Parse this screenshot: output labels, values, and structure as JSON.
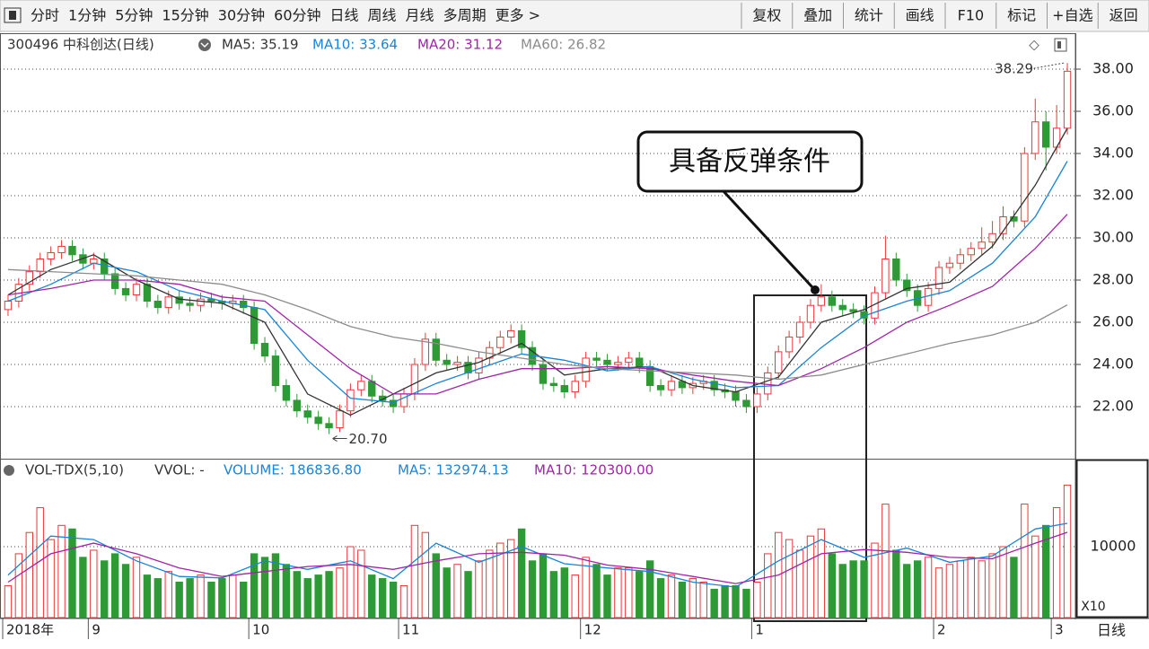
{
  "toolbar": {
    "left": [
      "分时",
      "1分钟",
      "5分钟",
      "15分钟",
      "30分钟",
      "60分钟",
      "日线",
      "周线",
      "月线",
      "多周期",
      "更多 >"
    ],
    "active_index": 6,
    "right": [
      "复权",
      "叠加",
      "统计",
      "画线",
      "F10",
      "标记",
      "+自选",
      "返回"
    ]
  },
  "chart_data": {
    "type": "candlestick",
    "title": "300496 中科创达(日线)",
    "open": [
      26.6,
      27.0,
      27.8,
      28.4,
      29.0,
      29.3,
      29.6,
      29.2,
      28.8,
      29.0,
      28.3,
      27.6,
      27.3,
      27.8,
      27.0,
      26.7,
      27.2,
      26.9,
      26.8,
      27.1,
      27.0,
      26.9,
      27.0,
      26.7,
      25.0,
      24.4,
      23.0,
      22.3,
      21.8,
      21.5,
      21.2,
      21.0,
      21.8,
      22.8,
      23.2,
      22.5,
      22.3,
      22.0,
      22.6,
      24.0,
      25.2,
      24.2,
      24.0,
      24.1,
      23.6,
      24.3,
      24.8,
      25.3,
      25.6,
      24.8,
      24.0,
      23.1,
      23.0,
      22.7,
      23.2,
      24.3,
      24.2,
      24.0,
      24.1,
      24.3,
      23.9,
      23.0,
      22.8,
      23.2,
      22.9,
      23.1,
      23.2,
      22.8,
      22.7,
      22.3,
      22.0,
      22.6,
      23.6,
      24.6,
      25.3,
      26.0,
      26.8,
      27.2,
      26.8,
      26.6,
      26.5,
      26.2,
      27.4,
      29.0,
      28.0,
      27.5,
      26.8,
      27.6,
      28.6,
      28.8,
      29.2,
      29.5,
      29.8,
      30.2,
      31.0,
      30.8,
      34.0,
      35.5,
      34.3,
      35.2
    ],
    "high": [
      27.3,
      28.1,
      28.7,
      29.3,
      29.6,
      29.9,
      29.9,
      29.5,
      29.3,
      29.3,
      28.6,
      27.9,
      28.1,
      28.1,
      27.3,
      27.5,
      27.5,
      27.2,
      27.4,
      27.4,
      27.3,
      27.3,
      27.3,
      27.0,
      25.3,
      24.7,
      23.3,
      22.6,
      22.1,
      21.8,
      21.5,
      22.1,
      23.1,
      23.5,
      23.5,
      22.8,
      22.6,
      22.9,
      24.3,
      25.5,
      25.5,
      24.5,
      24.4,
      24.4,
      24.6,
      25.1,
      25.6,
      25.9,
      25.9,
      25.1,
      24.3,
      23.4,
      23.3,
      23.5,
      24.6,
      24.6,
      24.5,
      24.4,
      24.6,
      24.6,
      24.2,
      23.3,
      23.5,
      23.5,
      23.4,
      23.5,
      23.5,
      23.1,
      23.0,
      22.6,
      22.9,
      23.9,
      24.9,
      25.6,
      26.3,
      27.1,
      27.8,
      27.5,
      27.1,
      26.9,
      26.8,
      27.7,
      30.1,
      29.3,
      28.3,
      27.8,
      27.9,
      28.9,
      29.1,
      29.5,
      29.8,
      30.5,
      30.8,
      31.5,
      31.3,
      34.3,
      36.6,
      36.0,
      36.3,
      38.29
    ],
    "low": [
      26.3,
      26.7,
      27.5,
      28.1,
      28.7,
      29.0,
      28.9,
      28.5,
      28.5,
      28.0,
      27.3,
      27.0,
      27.0,
      26.7,
      26.4,
      26.4,
      26.6,
      26.5,
      26.5,
      26.7,
      26.6,
      26.6,
      26.4,
      24.7,
      24.1,
      22.7,
      22.0,
      21.5,
      21.2,
      20.9,
      20.7,
      20.8,
      21.5,
      22.5,
      22.2,
      22.0,
      21.7,
      21.7,
      22.3,
      23.7,
      23.9,
      23.7,
      23.7,
      23.3,
      23.3,
      24.0,
      24.5,
      25.0,
      24.5,
      23.7,
      22.8,
      22.7,
      22.4,
      22.4,
      22.9,
      23.9,
      23.7,
      23.7,
      23.8,
      23.6,
      22.7,
      22.5,
      22.5,
      22.6,
      22.6,
      22.8,
      22.5,
      22.4,
      22.0,
      21.7,
      21.7,
      22.3,
      23.3,
      24.3,
      25.0,
      25.7,
      26.5,
      26.5,
      26.3,
      26.2,
      25.9,
      25.9,
      27.1,
      27.7,
      27.2,
      26.5,
      26.5,
      27.3,
      28.3,
      28.5,
      28.9,
      29.2,
      29.5,
      29.9,
      30.5,
      30.5,
      33.7,
      33.2,
      34.0,
      34.9
    ],
    "close": [
      27.0,
      27.8,
      28.4,
      29.0,
      29.3,
      29.6,
      29.2,
      28.8,
      29.0,
      28.3,
      27.6,
      27.3,
      27.8,
      27.0,
      26.7,
      27.2,
      26.9,
      26.8,
      27.1,
      27.0,
      26.9,
      27.0,
      26.7,
      25.0,
      24.4,
      23.0,
      22.3,
      21.8,
      21.5,
      21.2,
      21.0,
      21.8,
      22.8,
      23.2,
      22.5,
      22.3,
      22.0,
      22.6,
      24.0,
      25.2,
      24.2,
      24.0,
      24.1,
      23.6,
      24.3,
      24.8,
      25.3,
      25.6,
      24.8,
      24.0,
      23.1,
      23.0,
      22.7,
      23.2,
      24.3,
      24.2,
      24.0,
      24.1,
      24.3,
      23.9,
      23.0,
      22.8,
      23.2,
      22.9,
      23.1,
      23.2,
      22.8,
      22.7,
      22.3,
      22.0,
      22.6,
      23.6,
      24.6,
      25.3,
      26.0,
      26.8,
      27.2,
      26.8,
      26.6,
      26.5,
      26.2,
      27.4,
      29.0,
      28.0,
      27.5,
      26.8,
      27.6,
      28.6,
      28.8,
      29.2,
      29.5,
      29.8,
      30.2,
      31.0,
      30.8,
      34.0,
      35.5,
      34.3,
      35.2,
      37.9
    ],
    "up_color": "#e8383c",
    "down_color": "#2e9a35",
    "ylim": [
      19.66,
      39.66
    ],
    "yticks": [
      {
        "value": 22,
        "label": "22.00"
      },
      {
        "value": 24,
        "label": "24.00"
      },
      {
        "value": 26,
        "label": "26.00"
      },
      {
        "value": 28,
        "label": "28.00"
      },
      {
        "value": 30,
        "label": "30.00"
      },
      {
        "value": 32,
        "label": "32.00"
      },
      {
        "value": 34,
        "label": "34.00"
      },
      {
        "value": 36,
        "label": "36.00"
      },
      {
        "value": 38,
        "label": "38.00"
      }
    ],
    "grid": true,
    "ma_x": [
      0,
      4,
      8,
      12,
      16,
      20,
      24,
      28,
      32,
      36,
      40,
      44,
      48,
      52,
      56,
      60,
      64,
      68,
      72,
      76,
      80,
      84,
      88,
      92,
      96,
      99
    ],
    "series": [
      {
        "name": "MA5: 35.19",
        "color": "#333333",
        "values": [
          27.3,
          28.5,
          29.2,
          28.0,
          27.1,
          26.9,
          26.0,
          22.6,
          21.6,
          22.6,
          23.6,
          24.1,
          25.0,
          23.5,
          23.8,
          23.9,
          23.0,
          22.7,
          23.4,
          26.0,
          26.6,
          27.6,
          27.9,
          29.6,
          32.5,
          35.19
        ]
      },
      {
        "name": "MA10: 33.64",
        "color": "#1a84d8",
        "values": [
          27.0,
          27.8,
          28.8,
          28.4,
          27.5,
          27.0,
          26.6,
          24.2,
          22.4,
          22.2,
          23.1,
          23.8,
          24.5,
          24.2,
          23.7,
          23.9,
          23.3,
          22.9,
          23.0,
          24.8,
          26.3,
          27.0,
          27.5,
          28.8,
          31.0,
          33.64
        ]
      },
      {
        "name": "MA20: 31.12",
        "color": "#a024a8",
        "values": [
          27.3,
          27.6,
          28.0,
          28.0,
          27.8,
          27.2,
          27.0,
          25.4,
          23.8,
          22.6,
          22.6,
          23.3,
          23.8,
          23.8,
          23.9,
          23.8,
          23.5,
          23.2,
          23.0,
          23.8,
          24.8,
          26.0,
          26.8,
          27.7,
          29.5,
          31.12
        ]
      },
      {
        "name": "MA60: 26.82",
        "color": "#8c8c8c",
        "values": [
          28.5,
          28.4,
          28.3,
          28.2,
          28.0,
          27.8,
          27.3,
          26.6,
          25.8,
          25.3,
          25.0,
          24.6,
          24.3,
          24.0,
          23.8,
          23.7,
          23.6,
          23.5,
          23.3,
          23.5,
          24.0,
          24.5,
          25.0,
          25.4,
          26.0,
          26.82
        ]
      }
    ],
    "low_label": "20.70",
    "high_label": "38.29",
    "annotation": "具备反弹条件",
    "x_labels": [
      {
        "index": 0,
        "label": "2018年"
      },
      {
        "index": 8,
        "label": "9"
      },
      {
        "index": 23,
        "label": "10"
      },
      {
        "index": 37,
        "label": "11"
      },
      {
        "index": 54,
        "label": "12"
      },
      {
        "index": 70,
        "label": "1"
      },
      {
        "index": 87,
        "label": "2"
      },
      {
        "index": 98,
        "label": "3"
      }
    ],
    "period_label": "日线",
    "volume": {
      "title": "VOL-TDX(5,10)",
      "vvol": "VVOL: -",
      "volume_label": "VOLUME: 186836.80",
      "unit_label": "X10",
      "values": [
        4500,
        9000,
        12000,
        15500,
        11000,
        13000,
        12500,
        8500,
        9500,
        8000,
        9000,
        7500,
        8500,
        6000,
        5500,
        6500,
        5000,
        5500,
        6000,
        5000,
        5500,
        6000,
        5000,
        9000,
        8500,
        9000,
        7500,
        6500,
        5500,
        6000,
        6500,
        7000,
        10000,
        9500,
        6000,
        5500,
        5000,
        4500,
        13000,
        12000,
        9000,
        7000,
        7500,
        6500,
        8000,
        9500,
        10500,
        11000,
        12500,
        8000,
        9000,
        6500,
        7000,
        6000,
        8500,
        7500,
        6000,
        7000,
        7000,
        6500,
        8000,
        5500,
        6000,
        5000,
        5500,
        5000,
        4000,
        4500,
        4500,
        4000,
        5000,
        9000,
        12000,
        11000,
        9500,
        11500,
        12500,
        9000,
        7500,
        8000,
        8000,
        10500,
        16000,
        9500,
        7500,
        8000,
        8500,
        7000,
        7500,
        8000,
        8500,
        8000,
        9000,
        10000,
        8500,
        16000,
        11500,
        13000,
        15500,
        18684
      ],
      "ylim": [
        0,
        22280
      ],
      "yticks": [
        10000
      ],
      "series": [
        {
          "name": "MA5: 132974.13",
          "color": "#1a84d8",
          "values": [
            6000,
            11500,
            11000,
            8000,
            5800,
            5600,
            8000,
            6800,
            8000,
            5500,
            10500,
            7800,
            10000,
            7600,
            7000,
            6500,
            5000,
            4300,
            8000,
            11000,
            8500,
            9800,
            7800,
            8700,
            12500,
            13297
          ]
        },
        {
          "name": "MA10: 120300.00",
          "color": "#a024a8",
          "values": [
            5000,
            9000,
            10500,
            9000,
            7000,
            5800,
            6500,
            7200,
            7500,
            6800,
            8000,
            9000,
            9200,
            8800,
            7400,
            6800,
            5800,
            4800,
            6000,
            9000,
            9600,
            9200,
            8500,
            8300,
            10500,
            12030
          ]
        }
      ]
    }
  }
}
